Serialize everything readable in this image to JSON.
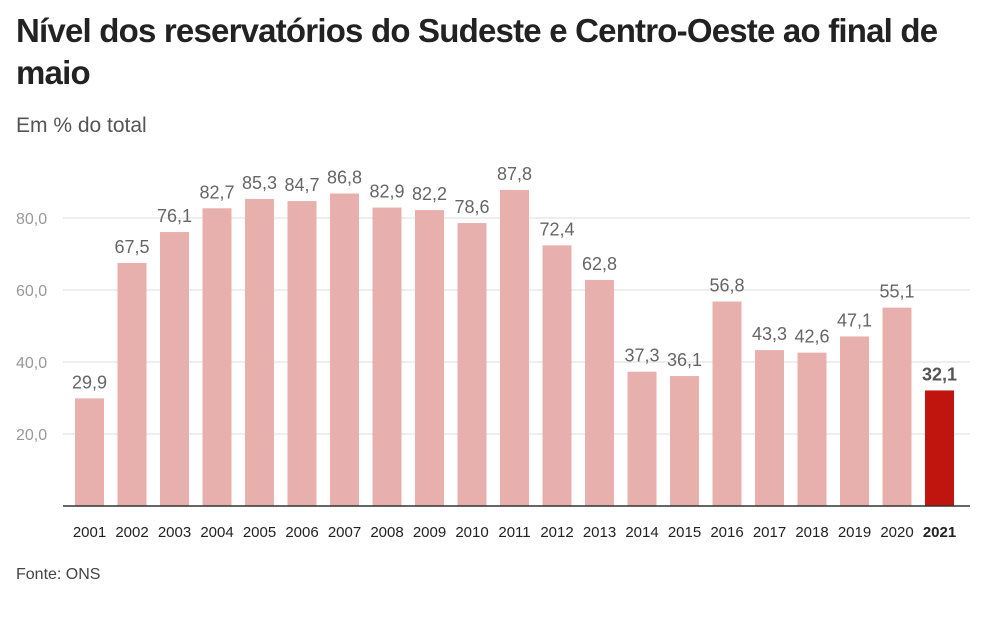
{
  "header": {
    "title": "Nível dos reservatórios do Sudeste e Centro-Oeste ao final de maio",
    "subtitle": "Em % do total"
  },
  "footer": {
    "source": "Fonte: ONS"
  },
  "chart_data": {
    "type": "bar",
    "title": "Nível dos reservatórios do Sudeste e Centro-Oeste ao final de maio",
    "subtitle": "Em % do total",
    "categories": [
      "2001",
      "2002",
      "2003",
      "2004",
      "2005",
      "2006",
      "2007",
      "2008",
      "2009",
      "2010",
      "2011",
      "2012",
      "2013",
      "2014",
      "2015",
      "2016",
      "2017",
      "2018",
      "2019",
      "2020",
      "2021"
    ],
    "values": [
      29.9,
      67.5,
      76.1,
      82.7,
      85.3,
      84.7,
      86.8,
      82.9,
      82.2,
      78.6,
      87.8,
      72.4,
      62.8,
      37.3,
      36.1,
      56.8,
      43.3,
      42.6,
      47.1,
      55.1,
      32.1
    ],
    "value_labels": [
      "29,9",
      "67,5",
      "76,1",
      "82,7",
      "85,3",
      "84,7",
      "86,8",
      "82,9",
      "82,2",
      "78,6",
      "87,8",
      "72,4",
      "62,8",
      "37,3",
      "36,1",
      "56,8",
      "43,3",
      "42,6",
      "47,1",
      "55,1",
      "32,1"
    ],
    "highlight_index": 20,
    "yticks": [
      20,
      40,
      60,
      80
    ],
    "ytick_labels": [
      "20,0",
      "40,0",
      "60,0",
      "80,0"
    ],
    "ylim": [
      0,
      100
    ],
    "xlabel": "",
    "ylabel": "",
    "grid": true,
    "colors": {
      "bar": "#e8b0ad",
      "highlight": "#c0140f",
      "grid": "#dddddd",
      "axis": "#333333"
    },
    "source": "Fonte: ONS"
  }
}
